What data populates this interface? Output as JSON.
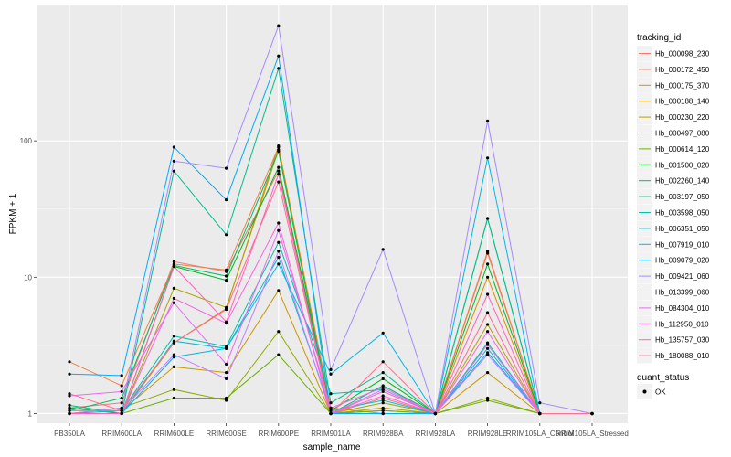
{
  "chart_data": {
    "type": "line",
    "xlabel": "sample_name",
    "ylabel": "FPKM + 1",
    "y_scale": "log10",
    "ylim": [
      0.85,
      1000
    ],
    "y_ticks": [
      {
        "value": 1,
        "label": "1"
      },
      {
        "value": 10,
        "label": "10"
      },
      {
        "value": 100,
        "label": "100"
      }
    ],
    "grid": true,
    "legend_position": "right",
    "categories": [
      "PB350LA",
      "RRIM600LA",
      "RRIM600LE",
      "RRIM600SE",
      "RRIM600PE",
      "RRIM901LA",
      "RRIM928BA",
      "RRIM928LA",
      "RRIM928LE",
      "RRIM105LA_Control",
      "RRIM105LA_Stressed"
    ],
    "legend_title": "tracking_id",
    "shape_legend": {
      "title": "quant_status",
      "label": "OK"
    },
    "series": [
      {
        "name": "Hb_000098_230",
        "color": "#F8766D",
        "values": [
          1.1,
          1.2,
          13.0,
          11.0,
          60,
          1.0,
          1.3,
          1.0,
          15.0,
          1.0,
          1.0
        ]
      },
      {
        "name": "Hb_000172_450",
        "color": "#EE8042",
        "values": [
          2.4,
          1.6,
          12.5,
          11.3,
          90,
          1.1,
          1.0,
          1.0,
          15.5,
          1.0,
          1.0
        ]
      },
      {
        "name": "Hb_000175_370",
        "color": "#DF8C00",
        "values": [
          1.0,
          1.0,
          3.3,
          5.9,
          92,
          1.0,
          1.05,
          1.0,
          10.0,
          1.0,
          1.0
        ]
      },
      {
        "name": "Hb_000188_140",
        "color": "#CB9600",
        "values": [
          1.05,
          1.05,
          2.2,
          2.0,
          8.0,
          1.0,
          1.0,
          1.0,
          2.0,
          1.0,
          1.0
        ]
      },
      {
        "name": "Hb_000230_220",
        "color": "#B2A000",
        "values": [
          1.0,
          1.0,
          8.3,
          6.0,
          86,
          1.0,
          1.1,
          1.0,
          4.5,
          1.0,
          1.0
        ]
      },
      {
        "name": "Hb_000497_080",
        "color": "#93AA00",
        "values": [
          1.0,
          1.1,
          1.5,
          1.25,
          4.0,
          1.0,
          1.2,
          1.0,
          1.3,
          1.0,
          1.0
        ]
      },
      {
        "name": "Hb_000614_120",
        "color": "#68B100",
        "values": [
          1.0,
          1.0,
          1.3,
          1.3,
          2.7,
          1.0,
          1.05,
          1.0,
          1.25,
          1.0,
          1.0
        ]
      },
      {
        "name": "Hb_001500_020",
        "color": "#00B61F",
        "values": [
          1.1,
          1.0,
          12.0,
          9.5,
          64,
          1.05,
          1.8,
          1.0,
          12.5,
          1.0,
          1.0
        ]
      },
      {
        "name": "Hb_002260_140",
        "color": "#00BA68",
        "values": [
          1.05,
          1.3,
          12.2,
          10.2,
          84,
          1.0,
          1.6,
          1.0,
          27,
          1.0,
          1.0
        ]
      },
      {
        "name": "Hb_003197_050",
        "color": "#00BE8C",
        "values": [
          1.15,
          1.0,
          60,
          20.5,
          340,
          1.2,
          2.0,
          1.0,
          27,
          1.0,
          1.0
        ]
      },
      {
        "name": "Hb_003598_050",
        "color": "#00C0AE",
        "values": [
          1.0,
          1.05,
          3.7,
          3.1,
          18,
          1.4,
          1.5,
          1.0,
          3.3,
          1.0,
          1.0
        ]
      },
      {
        "name": "Hb_006351_050",
        "color": "#00BED0",
        "values": [
          1.0,
          1.0,
          3.4,
          3.0,
          14,
          1.05,
          1.25,
          1.0,
          3.0,
          1.0,
          1.0
        ]
      },
      {
        "name": "Hb_007919_010",
        "color": "#00B7E8",
        "values": [
          1.0,
          1.0,
          2.6,
          3.0,
          12.5,
          1.95,
          3.9,
          1.0,
          75,
          1.0,
          1.0
        ]
      },
      {
        "name": "Hb_009079_020",
        "color": "#00ACFC",
        "values": [
          1.95,
          1.9,
          90,
          37,
          420,
          1.0,
          1.0,
          1.0,
          2.8,
          1.0,
          1.0
        ]
      },
      {
        "name": "Hb_009421_060",
        "color": "#A58AFF",
        "values": [
          1.0,
          1.1,
          71,
          63,
          700,
          2.1,
          16,
          1.0,
          140,
          1.2,
          1.0
        ]
      },
      {
        "name": "Hb_013399_060",
        "color": "#C77CFF",
        "values": [
          1.05,
          1.05,
          2.7,
          1.8,
          15.5,
          1.0,
          1.5,
          1.0,
          2.7,
          1.0,
          1.0
        ]
      },
      {
        "name": "Hb_084304_010",
        "color": "#E76BF3",
        "values": [
          1.35,
          1.45,
          6.5,
          2.3,
          22,
          1.1,
          1.55,
          1.0,
          3.2,
          1.0,
          1.0
        ]
      },
      {
        "name": "Hb_112950_010",
        "color": "#F763E0",
        "values": [
          1.0,
          1.0,
          7.0,
          4.6,
          25,
          1.0,
          1.35,
          1.0,
          4.0,
          1.0,
          1.0
        ]
      },
      {
        "name": "Hb_135757_030",
        "color": "#FF62BC",
        "values": [
          1.0,
          1.0,
          12.0,
          4.7,
          57,
          1.0,
          1.45,
          1.0,
          7.5,
          1.0,
          1.0
        ]
      },
      {
        "name": "Hb_180088_010",
        "color": "#FF6C90",
        "values": [
          1.4,
          1.05,
          3.3,
          5.8,
          50,
          1.0,
          2.4,
          1.0,
          5.5,
          1.0,
          1.0
        ]
      }
    ]
  }
}
